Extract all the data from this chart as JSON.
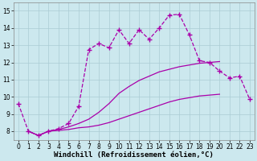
{
  "xlabel": "Windchill (Refroidissement éolien,°C)",
  "background_color": "#cce8ee",
  "line_color": "#aa00aa",
  "xlim": [
    -0.5,
    23.5
  ],
  "ylim": [
    7.5,
    15.5
  ],
  "xticks": [
    0,
    1,
    2,
    3,
    4,
    5,
    6,
    7,
    8,
    9,
    10,
    11,
    12,
    13,
    14,
    15,
    16,
    17,
    18,
    19,
    20,
    21,
    22,
    23
  ],
  "yticks": [
    8,
    9,
    10,
    11,
    12,
    13,
    14,
    15
  ],
  "series": [
    {
      "x": [
        1,
        2,
        3,
        4,
        5,
        6,
        7,
        8,
        9,
        10,
        11,
        12,
        13,
        14,
        15,
        16,
        17,
        18,
        19,
        20,
        21,
        22,
        23
      ],
      "y": [
        8.0,
        7.75,
        8.0,
        8.05,
        8.1,
        8.2,
        8.25,
        8.35,
        8.5,
        8.7,
        8.9,
        9.1,
        9.3,
        9.5,
        9.7,
        9.85,
        9.95,
        10.05,
        10.1,
        10.15,
        null,
        null,
        null
      ],
      "marker": false,
      "dashed": false,
      "lw": 0.9
    },
    {
      "x": [
        1,
        2,
        3,
        4,
        5,
        6,
        7,
        8,
        9,
        10,
        11,
        12,
        13,
        14,
        15,
        16,
        17,
        18,
        19,
        20,
        21,
        22,
        23
      ],
      "y": [
        8.0,
        7.75,
        8.0,
        8.1,
        8.25,
        8.45,
        8.7,
        9.1,
        9.6,
        10.2,
        10.6,
        10.95,
        11.2,
        11.45,
        11.6,
        11.75,
        11.85,
        11.95,
        12.0,
        12.05,
        null,
        null,
        null
      ],
      "marker": false,
      "dashed": false,
      "lw": 0.9
    },
    {
      "x": [
        0,
        1,
        2,
        3,
        4,
        5,
        6,
        7,
        8,
        9,
        10,
        11,
        12,
        13,
        14,
        15,
        16,
        17,
        18,
        19,
        20,
        21,
        22,
        23
      ],
      "y": [
        9.6,
        8.0,
        7.75,
        8.0,
        8.15,
        8.45,
        9.45,
        12.75,
        13.1,
        12.85,
        13.9,
        13.1,
        13.9,
        13.35,
        14.0,
        14.75,
        14.8,
        13.6,
        12.1,
        12.0,
        11.5,
        11.1,
        11.2,
        9.85
      ],
      "marker": true,
      "dashed": true,
      "lw": 0.9
    }
  ],
  "grid_color": "#aaccd4",
  "tick_fontsize": 5.5,
  "xlabel_fontsize": 6.5
}
